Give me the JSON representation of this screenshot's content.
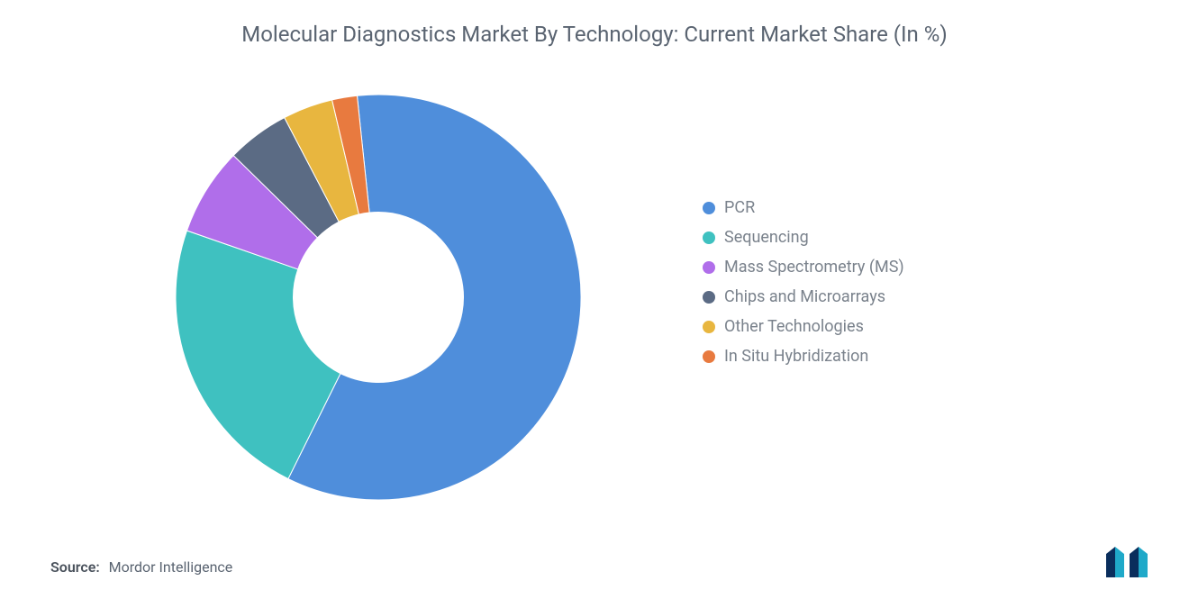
{
  "title": "Molecular Diagnostics Market By Technology: Current Market Share (In %)",
  "chart": {
    "type": "donut",
    "inner_radius_ratio": 0.42,
    "outer_radius": 225,
    "background_color": "#ffffff",
    "start_angle_deg": -6,
    "slices": [
      {
        "label": "PCR",
        "value": 59,
        "color": "#4f8edb"
      },
      {
        "label": "Sequencing",
        "value": 23,
        "color": "#3fc1c0"
      },
      {
        "label": "Mass Spectrometry (MS)",
        "value": 7,
        "color": "#b06eea"
      },
      {
        "label": "Chips and Microarrays",
        "value": 5,
        "color": "#5b6b84"
      },
      {
        "label": "Other Technologies",
        "value": 4,
        "color": "#e8b63f"
      },
      {
        "label": "In Situ Hybridization",
        "value": 2,
        "color": "#e87a3f"
      }
    ]
  },
  "legend_fontsize": 18,
  "legend_color": "#7a828c",
  "title_fontsize": 24,
  "title_color": "#5a6471",
  "source_label": "Source:",
  "source_value": "Mordor Intelligence",
  "logo_colors": {
    "bar1": "#0a2e5c",
    "bar2": "#1fa9c9"
  }
}
